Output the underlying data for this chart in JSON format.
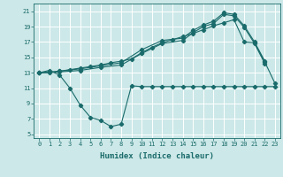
{
  "xlabel": "Humidex (Indice chaleur)",
  "bg_color": "#cde8e8",
  "grid_color": "#ffffff",
  "line_color": "#1a6b6b",
  "xlim": [
    -0.5,
    23.5
  ],
  "ylim": [
    4.5,
    22
  ],
  "xticks": [
    0,
    1,
    2,
    3,
    4,
    5,
    6,
    7,
    8,
    9,
    10,
    11,
    12,
    13,
    14,
    15,
    16,
    17,
    18,
    19,
    20,
    21,
    22,
    23
  ],
  "yticks": [
    5,
    7,
    9,
    11,
    13,
    15,
    17,
    19,
    21
  ],
  "series1_x": [
    0,
    1,
    2,
    3,
    4,
    5,
    6,
    7,
    8,
    9,
    10,
    11,
    12,
    13,
    14,
    15,
    16,
    17,
    18,
    19,
    20,
    21,
    22,
    23
  ],
  "series1_y": [
    13.0,
    13.3,
    12.7,
    11.0,
    8.8,
    7.2,
    6.8,
    6.0,
    6.3,
    11.3,
    11.2,
    11.2,
    11.2,
    11.2,
    11.2,
    11.2,
    11.2,
    11.2,
    11.2,
    11.2,
    11.2,
    11.2,
    11.2,
    11.2
  ],
  "series2_x": [
    0,
    1,
    2,
    3,
    4,
    5,
    6,
    7,
    8,
    9,
    10,
    11,
    12,
    13,
    14,
    15,
    16,
    17,
    18,
    19,
    20,
    21,
    22,
    23
  ],
  "series2_y": [
    13.0,
    13.0,
    13.2,
    13.4,
    13.6,
    13.8,
    14.0,
    14.3,
    14.5,
    14.8,
    15.6,
    16.3,
    16.9,
    17.3,
    17.7,
    18.1,
    18.6,
    19.1,
    19.5,
    19.9,
    17.0,
    16.9,
    14.4,
    11.6
  ],
  "series3_x": [
    0,
    2,
    4,
    6,
    8,
    10,
    12,
    14,
    15,
    16,
    17,
    18,
    19,
    20,
    21,
    22
  ],
  "series3_y": [
    13.0,
    13.2,
    13.5,
    13.9,
    14.3,
    16.0,
    17.2,
    17.5,
    18.5,
    19.2,
    19.7,
    20.8,
    20.6,
    19.1,
    17.0,
    14.5
  ],
  "series4_x": [
    0,
    2,
    4,
    6,
    8,
    10,
    12,
    14,
    15,
    16,
    17,
    18,
    19,
    20,
    21,
    22
  ],
  "series4_y": [
    13.0,
    13.1,
    13.3,
    13.7,
    14.0,
    15.5,
    16.8,
    17.2,
    18.2,
    19.0,
    19.4,
    20.6,
    20.4,
    18.9,
    16.8,
    14.2
  ]
}
